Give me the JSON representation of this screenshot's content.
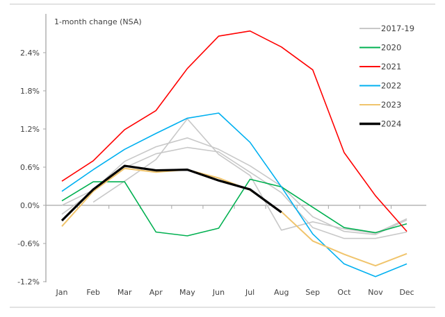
{
  "chart_data": {
    "type": "line",
    "title": "",
    "ylabel": "1-month change (NSA)",
    "xlabel": "",
    "categories": [
      "Jan",
      "Feb",
      "Mar",
      "Apr",
      "May",
      "Jun",
      "Jul",
      "Aug",
      "Sep",
      "Oct",
      "Nov",
      "Dec"
    ],
    "ylim": [
      -1.2,
      2.8
    ],
    "yticks": [
      -1.2,
      -0.6,
      0.0,
      0.6,
      1.2,
      1.8,
      2.4
    ],
    "ytick_labels": [
      "-1.2%",
      "-0.6%",
      "0.0%",
      "0.6%",
      "1.2%",
      "1.8%",
      "2.4%"
    ],
    "grid": false,
    "legend_position": "top-right",
    "series": [
      {
        "name": "2017-19",
        "legend": true,
        "color": "#c8c8c8",
        "values": [
          null,
          0.05,
          0.38,
          0.72,
          1.36,
          0.8,
          0.47,
          -0.39,
          -0.26,
          -0.37,
          -0.44,
          -0.21
        ]
      },
      {
        "name": "2017-19",
        "legend": false,
        "color": "#c8c8c8",
        "values": [
          0.0,
          0.24,
          0.69,
          0.92,
          1.06,
          0.88,
          0.62,
          0.3,
          -0.18,
          -0.41,
          -0.46,
          -0.23
        ]
      },
      {
        "name": "2017-19",
        "legend": false,
        "color": "#c8c8c8",
        "values": [
          -0.14,
          0.22,
          0.59,
          0.81,
          0.91,
          0.84,
          0.52,
          0.2,
          -0.35,
          -0.52,
          -0.52,
          -0.42
        ]
      },
      {
        "name": "2020",
        "legend": true,
        "color": "#00b050",
        "values": [
          0.07,
          0.37,
          0.37,
          -0.42,
          -0.48,
          -0.36,
          0.41,
          0.29,
          -0.03,
          -0.35,
          -0.43,
          -0.29
        ]
      },
      {
        "name": "2021",
        "legend": true,
        "color": "#ff0000",
        "values": [
          0.38,
          0.7,
          1.19,
          1.49,
          2.15,
          2.66,
          2.74,
          2.49,
          2.13,
          0.83,
          0.15,
          -0.41
        ]
      },
      {
        "name": "2022",
        "legend": true,
        "color": "#00b0f0",
        "values": [
          0.22,
          0.56,
          0.88,
          1.13,
          1.37,
          1.45,
          0.99,
          0.29,
          -0.45,
          -0.92,
          -1.12,
          -0.92
        ]
      },
      {
        "name": "2023",
        "legend": true,
        "color": "#f0c46c",
        "values": [
          -0.33,
          0.22,
          0.58,
          0.52,
          0.56,
          0.43,
          0.24,
          -0.1,
          -0.56,
          -0.77,
          -0.95,
          -0.76
        ]
      },
      {
        "name": "2024",
        "legend": true,
        "color": "#000000",
        "values": [
          -0.24,
          0.25,
          0.62,
          0.55,
          0.56,
          0.39,
          0.25,
          -0.11,
          null,
          null,
          null,
          null
        ]
      }
    ]
  }
}
